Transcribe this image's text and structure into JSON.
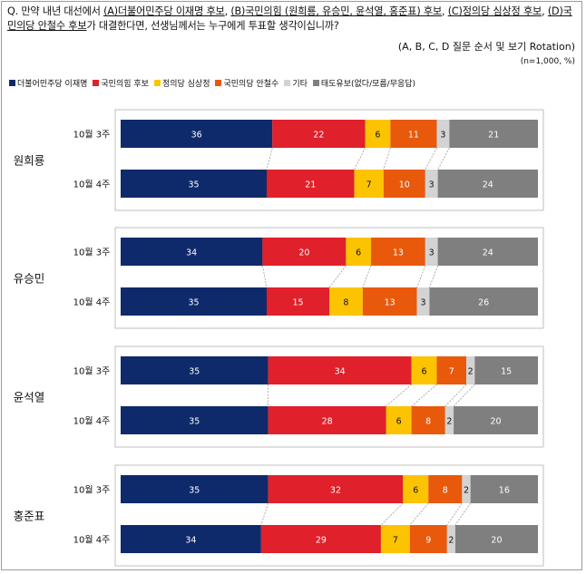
{
  "question": {
    "prefix": "Q. 만약 내년 대선에서 ",
    "a": "(A)더불어민주당 이재명 후보",
    "sep1": ", ",
    "b": "(B)국민의힘 (원희룡, 유승민, 윤석열, 홍준표) 후보",
    "sep2": ", ",
    "c": "(C)정의당 심상정 후보",
    "sep3": ", ",
    "d": "(D)국민의당 안철수 후보",
    "suffix": "가 대결한다면, 선생님께서는 누구에게 투표할 생각이십니까?"
  },
  "note_rotation": "(A, B, C, D 질문 순서 및 보기 Rotation)",
  "note_n": "(n=1,000, %)",
  "legend": [
    {
      "label": "더불어민주당 이재명",
      "color": "#0f2a6b"
    },
    {
      "label": "국민의힘 후보",
      "color": "#e0202a"
    },
    {
      "label": "정의당 심상정",
      "color": "#fcc400"
    },
    {
      "label": "국민의당 안철수",
      "color": "#e8590c"
    },
    {
      "label": "기타",
      "color": "#d3d3d3"
    },
    {
      "label": "태도유보(없다/모름/무응답)",
      "color": "#7f7f7f"
    }
  ],
  "chart_data": {
    "type": "bar",
    "stacked": true,
    "orientation": "horizontal",
    "series_names": [
      "더불어민주당 이재명",
      "국민의힘 후보",
      "정의당 심상정",
      "국민의당 안철수",
      "기타",
      "태도유보(없다/모름/무응답)"
    ],
    "groups": [
      {
        "name": "원희룡",
        "rows": [
          {
            "label": "10월 3주",
            "values": [
              36,
              22,
              6,
              11,
              3,
              21
            ]
          },
          {
            "label": "10월 4주",
            "values": [
              35,
              21,
              7,
              10,
              3,
              24
            ]
          }
        ]
      },
      {
        "name": "유승민",
        "rows": [
          {
            "label": "10월 3주",
            "values": [
              34,
              20,
              6,
              13,
              3,
              24
            ]
          },
          {
            "label": "10월 4주",
            "values": [
              35,
              15,
              8,
              13,
              3,
              26
            ]
          }
        ]
      },
      {
        "name": "윤석열",
        "rows": [
          {
            "label": "10월 3주",
            "values": [
              35,
              34,
              6,
              7,
              2,
              15
            ]
          },
          {
            "label": "10월 4주",
            "values": [
              35,
              28,
              6,
              8,
              2,
              20
            ]
          }
        ]
      },
      {
        "name": "홍준표",
        "rows": [
          {
            "label": "10월 3주",
            "values": [
              35,
              32,
              6,
              8,
              2,
              16
            ]
          },
          {
            "label": "10월 4주",
            "values": [
              34,
              29,
              7,
              9,
              2,
              20
            ]
          }
        ]
      }
    ]
  }
}
